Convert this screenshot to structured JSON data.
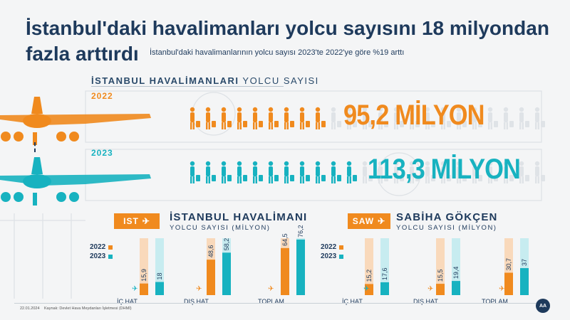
{
  "title": "İstanbul'daki havalimanları yolcu sayısını 18 milyondan fazla arttırdı",
  "subtitle": "İstanbul'daki havalimanlarının yolcu sayısı 2023'te 2022'ye göre %19 arttı",
  "section_title_bold": "İSTANBUL HAVALİMANLARI",
  "section_title_rest": "YOLCU SAYISI",
  "year_2022": "2022",
  "year_2023": "2023",
  "total_2022": "95,2 MİLYON",
  "total_2023": "113,3 MİLYON",
  "colors": {
    "y2022": "#f08a1e",
    "y2023": "#17b2c0",
    "navy": "#1e3a5c"
  },
  "panels": [
    {
      "code": "IST",
      "name": "İSTANBUL HAVALİMANI",
      "sub": "YOLCU SAYISI (MİLYON)"
    },
    {
      "code": "SAW",
      "name": "SABİHA GÖKÇEN",
      "sub": "YOLCU SAYISI (MİLYON)"
    }
  ],
  "legend": {
    "y2022": "2022",
    "y2023": "2023"
  },
  "footer": {
    "date": "22.01.2024",
    "source": "Kaynak: Devlet Hava Meydanları İşletmesi (DHMİ)"
  },
  "chart_data": [
    {
      "type": "bar",
      "title": "İSTANBUL HAVALİMANI",
      "categories": [
        "İÇ HAT",
        "DIŞ HAT",
        "TOPLAM"
      ],
      "series": [
        {
          "name": "2022",
          "values": [
            15.9,
            48.6,
            64.5
          ]
        },
        {
          "name": "2023",
          "values": [
            18,
            58.2,
            76.2
          ]
        }
      ],
      "labels": [
        [
          "15,9",
          "48,6",
          "64,5"
        ],
        [
          "18",
          "58,2",
          "76,2"
        ]
      ]
    },
    {
      "type": "bar",
      "title": "SABİHA GÖKÇEN",
      "categories": [
        "İÇ HAT",
        "DIŞ HAT",
        "TOPLAM"
      ],
      "series": [
        {
          "name": "2022",
          "values": [
            15.2,
            15.5,
            30.7
          ]
        },
        {
          "name": "2023",
          "values": [
            17.6,
            19.4,
            37
          ]
        }
      ],
      "labels": [
        [
          "15,2",
          "15,5",
          "30,7"
        ],
        [
          "17,6",
          "19,4",
          "37"
        ]
      ]
    }
  ]
}
